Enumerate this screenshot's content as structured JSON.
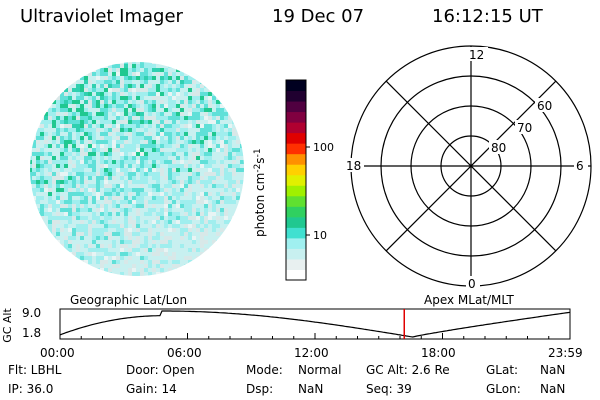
{
  "header": {
    "instrument": "Ultraviolet Imager",
    "date": "19 Dec 07",
    "time": "16:12:15 UT"
  },
  "colorbar": {
    "label": "photon cm",
    "label_sup1": "-2",
    "label_s": "s",
    "label_sup2": "-1",
    "ticks": [
      "100",
      "10"
    ],
    "colors": [
      "#ffffff",
      "#e8f0f0",
      "#c8f0f0",
      "#a0f0f0",
      "#40e0d0",
      "#20c890",
      "#30d060",
      "#60e030",
      "#a0f000",
      "#e0f000",
      "#ffd000",
      "#ff9000",
      "#ff3000",
      "#e00000",
      "#b00030",
      "#800040",
      "#500040",
      "#200030",
      "#000020"
    ]
  },
  "polar_plot": {
    "mlt_labels": {
      "top": "12",
      "left": "18",
      "right": "6",
      "bottom": "0"
    },
    "lat_labels": [
      "60",
      "70",
      "80"
    ]
  },
  "image_disk": {
    "colors": [
      "#c8f0f0",
      "#a0eeee",
      "#60e0d8",
      "#30d0b0",
      "#20c890",
      "#d8e8e8",
      "#e8f4f4"
    ]
  },
  "labels": {
    "geographic": "Geographic Lat/Lon",
    "apex": "Apex MLat/MLT"
  },
  "alt_plot": {
    "axis_label": "GC Alt",
    "y_top": "9.0",
    "y_bottom": "1.8",
    "x_ticks": [
      "00:00",
      "06:00",
      "12:00",
      "18:00",
      "23:59"
    ],
    "marker_hour": 16.2
  },
  "info": {
    "flt": "Flt: LBHL",
    "ip": "IP: 36.0",
    "door": "Door: Open",
    "gain": "Gain: 14",
    "mode_label": "Mode:",
    "mode_value": "Normal",
    "dsp_label": "Dsp:",
    "dsp_value": "NaN",
    "gc_alt": "GC Alt: 2.6 Re",
    "seq": "Seq: 39",
    "glat_label": "GLat:",
    "glat_value": "NaN",
    "glon_label": "GLon:",
    "glon_value": "NaN"
  }
}
